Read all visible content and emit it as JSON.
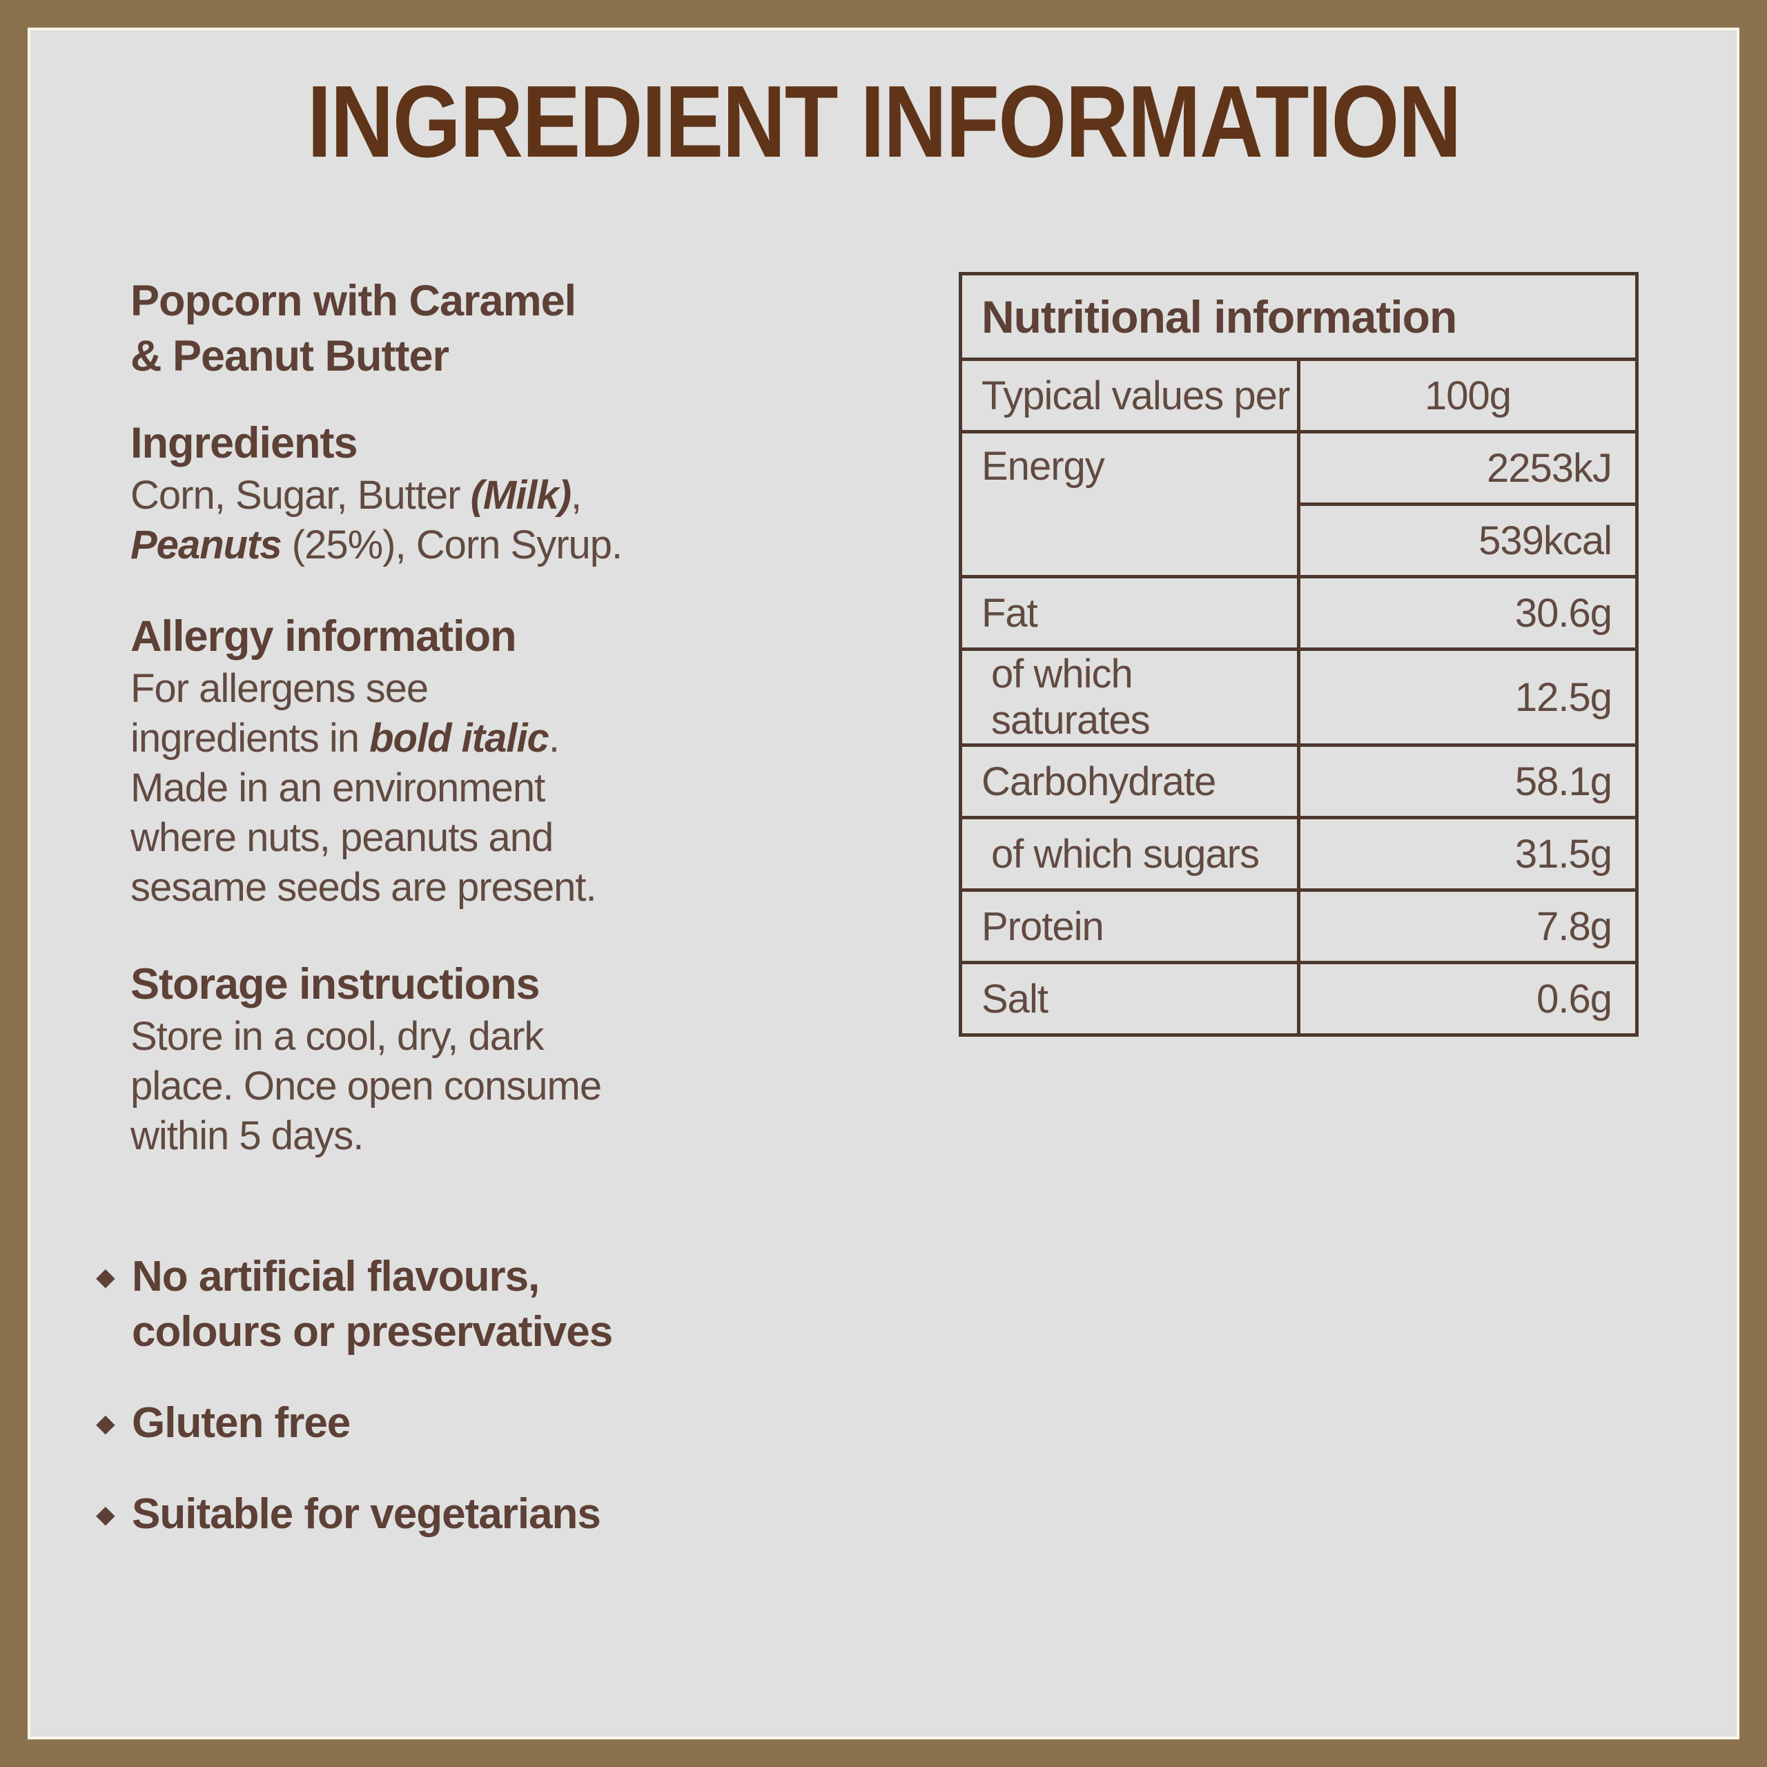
{
  "title": "INGREDIENT INFORMATION",
  "colors": {
    "frame": "#8b724f",
    "panel_background": "#e0e0e0",
    "panel_edge_line": "#faf6e9",
    "title_text": "#5f3418",
    "heading_text": "#5d4036",
    "body_text": "#614a40",
    "table_border": "#4e372d"
  },
  "left_column": {
    "product_title": {
      "line1": "Popcorn with Caramel",
      "line2": "& Peanut Butter"
    },
    "ingredients": {
      "heading": "Ingredients",
      "line1_seg1": "Corn, Sugar, Butter ",
      "line1_seg2": "(Milk)",
      "line1_seg3": ",",
      "line2_seg1": "Peanuts",
      "line2_seg2": " (25%), Corn Syrup."
    },
    "allergy": {
      "heading": "Allergy information",
      "line1": "For allergens see",
      "line2_seg1": "ingredients in ",
      "line2_seg2": "bold italic",
      "line2_seg3": ".",
      "line3": "Made in an environment",
      "line4": "where nuts, peanuts and",
      "line5": "sesame seeds are present."
    },
    "storage": {
      "heading": "Storage instructions",
      "line1": "Store in a cool, dry, dark",
      "line2": "place. Once open consume",
      "line3": "within 5 days."
    }
  },
  "bullets": {
    "glyph": "◆",
    "items": [
      {
        "line1": "No artificial flavours,",
        "line2": "colours or preservatives"
      },
      {
        "line1": "Gluten free"
      },
      {
        "line1": "Suitable for vegetarians"
      }
    ]
  },
  "table": {
    "header": "Nutritional information",
    "header_row": {
      "label": "Typical values per",
      "value": "100g"
    },
    "rows": [
      {
        "label": "Energy",
        "value": "2253kJ"
      },
      {
        "value": "539kcal"
      },
      {
        "label": "Fat",
        "value": "30.6g"
      },
      {
        "label": "of which saturates",
        "value": "12.5g"
      },
      {
        "label": "Carbohydrate",
        "value": "58.1g"
      },
      {
        "label": "of which sugars",
        "value": "31.5g"
      },
      {
        "label": "Protein",
        "value": "7.8g"
      },
      {
        "label": "Salt",
        "value": "0.6g"
      }
    ]
  }
}
